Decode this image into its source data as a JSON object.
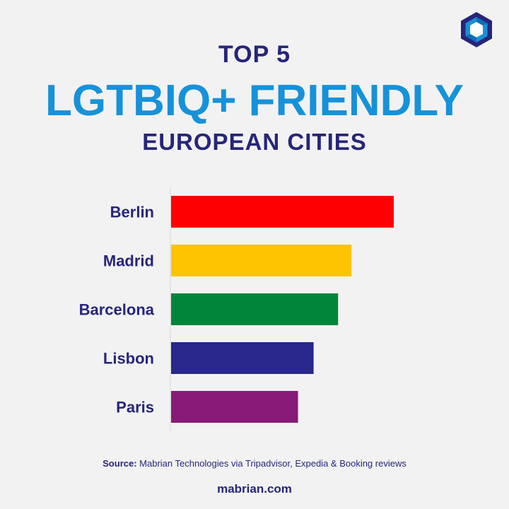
{
  "header": {
    "line1": "TOP 5",
    "line2": "LGTBIQ+ FRIENDLY",
    "line3": "EUROPEAN CITIES"
  },
  "chart_data": {
    "type": "bar",
    "orientation": "horizontal",
    "categories": [
      "Berlin",
      "Madrid",
      "Barcelona",
      "Lisbon",
      "Paris"
    ],
    "values": [
      100,
      81,
      75,
      64,
      57
    ],
    "colors": [
      "#ff0000",
      "#ffc400",
      "#00853a",
      "#27288a",
      "#871a77"
    ],
    "grid": false,
    "legend": "none",
    "xlim": [
      0,
      100
    ]
  },
  "source": {
    "label": "Source:",
    "text": " Mabrian Technologies via Tripadvisor, Expedia & Booking reviews"
  },
  "footer": {
    "site": "mabrian.com"
  },
  "colors": {
    "navy": "#27257a",
    "blue": "#1692d9"
  },
  "icons": {
    "logo": "hexagon-logo-icon"
  }
}
